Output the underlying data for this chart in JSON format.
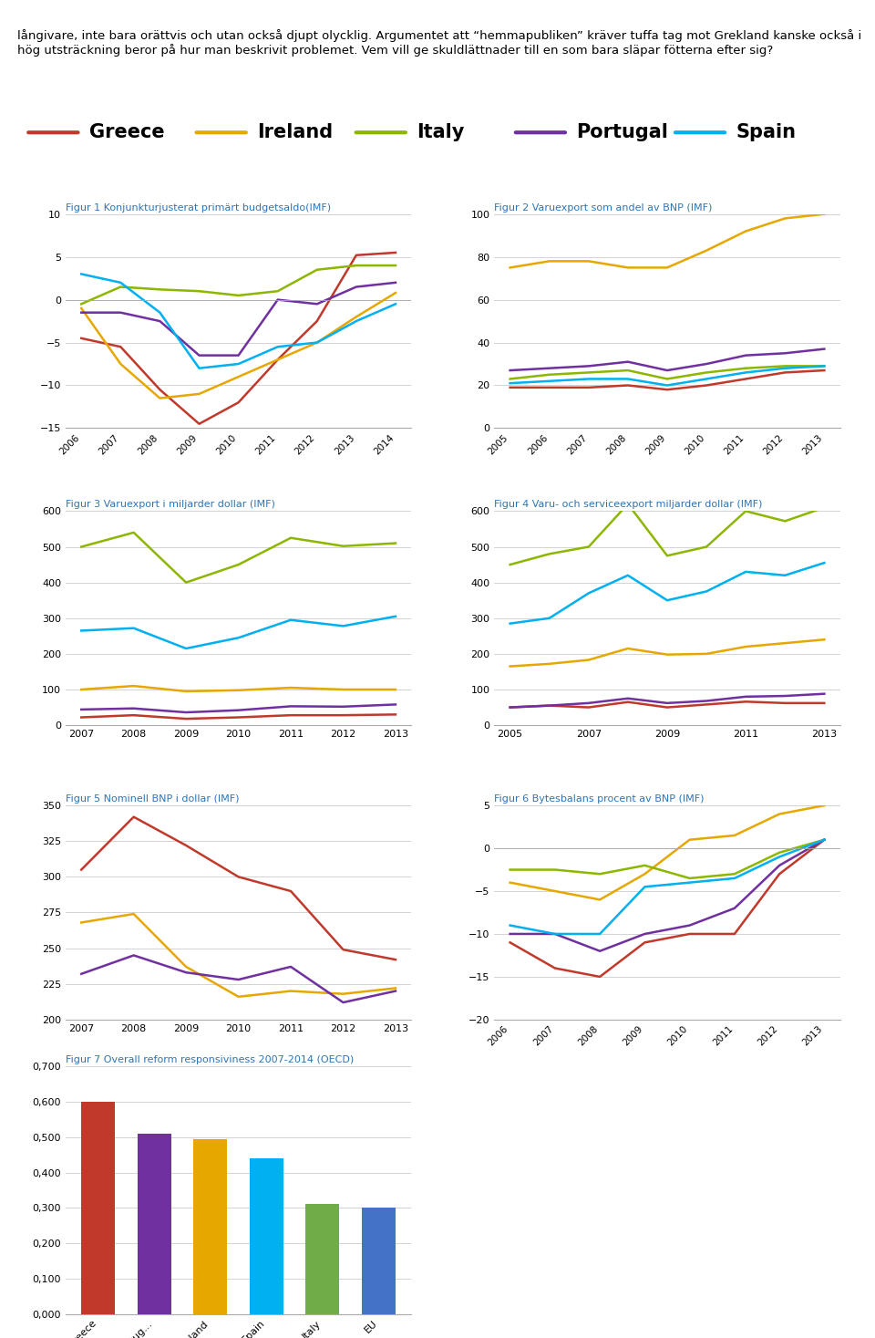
{
  "text_top": "långivare, inte bara orättvis och utan också djupt olycklig. Argumentet att “hemmapubliken” kräver tuffa tag mot Grekland kanske också i hög utsträckning beror på hur man beskrivit problemet. Vem vill ge skuldlättnader till en som bara släpar fötterna efter sig?",
  "legend_countries": [
    "Greece",
    "Ireland",
    "Italy",
    "Portugal",
    "Spain"
  ],
  "colors": {
    "Greece": "#c0392b",
    "Ireland": "#e6a800",
    "Italy": "#8db600",
    "Portugal": "#7030a0",
    "Spain": "#00b0f0"
  },
  "fig1": {
    "title": "Figur 1 Konjunkturjusterat primärt budgetsaldo(IMF)",
    "years": [
      2006,
      2007,
      2008,
      2009,
      2010,
      2011,
      2012,
      2013,
      2014
    ],
    "Greece": [
      -4.5,
      -5.5,
      -10.5,
      -14.5,
      -12.0,
      -7.0,
      -2.5,
      5.2,
      5.5
    ],
    "Ireland": [
      -1.0,
      -7.5,
      -11.5,
      -11.0,
      -9.0,
      -7.0,
      -5.0,
      -2.0,
      0.8
    ],
    "Italy": [
      -0.5,
      1.5,
      1.2,
      1.0,
      0.5,
      1.0,
      3.5,
      4.0,
      4.0
    ],
    "Portugal": [
      -1.5,
      -1.5,
      -2.5,
      -6.5,
      -6.5,
      0.0,
      -0.5,
      1.5,
      2.0
    ],
    "Spain": [
      3.0,
      2.0,
      -1.5,
      -8.0,
      -7.5,
      -5.5,
      -5.0,
      -2.5,
      -0.5
    ],
    "ylim": [
      -15,
      10
    ],
    "yticks": [
      -15,
      -10,
      -5,
      0,
      5,
      10
    ]
  },
  "fig2": {
    "title": "Figur 2 Varuexport som andel av BNP (IMF)",
    "years": [
      2005,
      2006,
      2007,
      2008,
      2009,
      2010,
      2011,
      2012,
      2013
    ],
    "Greece": [
      19,
      19,
      19,
      20,
      18,
      20,
      23,
      26,
      27
    ],
    "Ireland": [
      75,
      78,
      78,
      75,
      75,
      83,
      92,
      98,
      100
    ],
    "Italy": [
      23,
      25,
      26,
      27,
      23,
      26,
      28,
      29,
      29
    ],
    "Portugal": [
      27,
      28,
      29,
      31,
      27,
      30,
      34,
      35,
      37
    ],
    "Spain": [
      21,
      22,
      23,
      23,
      20,
      23,
      26,
      28,
      29
    ],
    "ylim": [
      0,
      100
    ],
    "yticks": [
      0,
      20,
      40,
      60,
      80,
      100
    ]
  },
  "fig3": {
    "title": "Figur 3 Varuexport i miljarder dollar (IMF)",
    "years": [
      2007,
      2008,
      2009,
      2010,
      2011,
      2012,
      2013
    ],
    "Greece": [
      22,
      28,
      18,
      22,
      28,
      28,
      30
    ],
    "Ireland": [
      100,
      110,
      95,
      98,
      105,
      100,
      100
    ],
    "Italy": [
      500,
      540,
      400,
      450,
      525,
      502,
      510
    ],
    "Portugal": [
      44,
      47,
      36,
      42,
      53,
      52,
      58
    ],
    "Spain": [
      265,
      272,
      215,
      245,
      295,
      278,
      305
    ],
    "ylim": [
      0,
      600
    ],
    "yticks": [
      0,
      100,
      200,
      300,
      400,
      500,
      600
    ]
  },
  "fig4": {
    "title": "Figur 4 Varu- och serviceexport miljarder dollar (IMF)",
    "years": [
      2005,
      2006,
      2007,
      2008,
      2009,
      2010,
      2011,
      2012,
      2013
    ],
    "Greece": [
      50,
      55,
      50,
      65,
      50,
      58,
      66,
      62,
      62
    ],
    "Ireland": [
      165,
      172,
      183,
      215,
      198,
      200,
      220,
      230,
      240
    ],
    "Italy": [
      450,
      480,
      500,
      620,
      475,
      500,
      600,
      572,
      610
    ],
    "Portugal": [
      50,
      55,
      62,
      75,
      62,
      68,
      80,
      82,
      88
    ],
    "Spain": [
      285,
      300,
      370,
      420,
      350,
      375,
      430,
      420,
      455
    ],
    "ylim": [
      0,
      600
    ],
    "yticks": [
      0,
      100,
      200,
      300,
      400,
      500,
      600
    ]
  },
  "fig5": {
    "title": "Figur 5 Nominell BNP i dollar (IMF)",
    "years": [
      2007,
      2008,
      2009,
      2010,
      2011,
      2012,
      2013
    ],
    "Greece": [
      305,
      342,
      322,
      300,
      290,
      249,
      242
    ],
    "Ireland": [
      268,
      274,
      237,
      216,
      220,
      218,
      222
    ],
    "Portugal": [
      232,
      245,
      233,
      228,
      237,
      212,
      220
    ],
    "ylim": [
      200,
      350
    ],
    "yticks": [
      200,
      225,
      250,
      275,
      300,
      325,
      350
    ]
  },
  "fig6": {
    "title": "Figur 6 Bytesbalans procent av BNP (IMF)",
    "years": [
      2006,
      2007,
      2008,
      2009,
      2010,
      2011,
      2012,
      2013
    ],
    "Greece": [
      -11,
      -14,
      -15,
      -11,
      -10,
      -10,
      -3,
      1
    ],
    "Ireland": [
      -4,
      -5,
      -6,
      -3,
      1,
      1.5,
      4,
      5
    ],
    "Italy": [
      -2.5,
      -2.5,
      -3,
      -2,
      -3.5,
      -3,
      -0.5,
      1
    ],
    "Portugal": [
      -10,
      -10,
      -12,
      -10,
      -9,
      -7,
      -2,
      1
    ],
    "Spain": [
      -9,
      -10,
      -10,
      -4.5,
      -4,
      -3.5,
      -1,
      1
    ],
    "ylim": [
      -20,
      5
    ],
    "yticks": [
      -20,
      -15,
      -10,
      -5,
      0,
      5
    ]
  },
  "fig7": {
    "title": "Figur 7 Overall reform responsiviness 2007-2014 (OECD)",
    "categories": [
      "Greece",
      "Portug...",
      "Ireland",
      "Spain",
      "Italy",
      "EU"
    ],
    "values": [
      0.6,
      0.51,
      0.495,
      0.44,
      0.31,
      0.3
    ],
    "bar_colors": [
      "#c0392b",
      "#7030a0",
      "#e6a800",
      "#00b0f0",
      "#70ad47",
      "#4472c4"
    ],
    "ylim": [
      0,
      0.7
    ],
    "yticks": [
      0.0,
      0.1,
      0.2,
      0.3,
      0.4,
      0.5,
      0.6,
      0.7
    ]
  }
}
